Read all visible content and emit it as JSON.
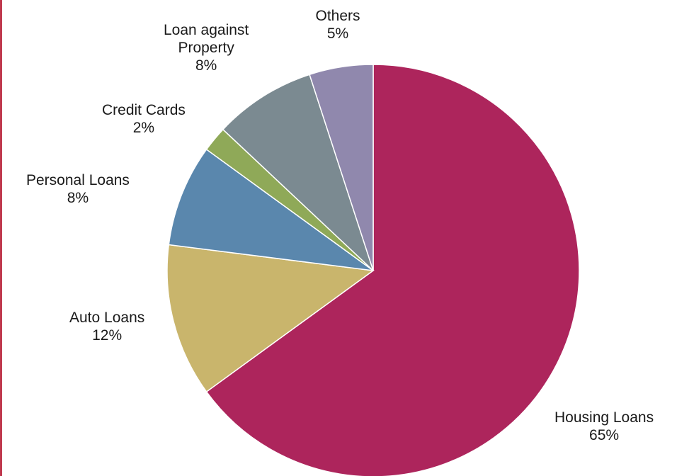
{
  "chart_data": {
    "type": "pie",
    "start": "top",
    "direction": "clockwise",
    "slices": [
      {
        "name": "Housing Loans",
        "label_lines": [
          "Housing Loans"
        ],
        "value": 65,
        "value_label": "65%",
        "color": "#ad255c"
      },
      {
        "name": "Auto Loans",
        "label_lines": [
          "Auto Loans"
        ],
        "value": 12,
        "value_label": "12%",
        "color": "#c9b56c"
      },
      {
        "name": "Personal Loans",
        "label_lines": [
          "Personal Loans"
        ],
        "value": 8,
        "value_label": "8%",
        "color": "#5a87ad"
      },
      {
        "name": "Credit Cards",
        "label_lines": [
          "Credit Cards"
        ],
        "value": 2,
        "value_label": "2%",
        "color": "#8fa958"
      },
      {
        "name": "Loan against Property",
        "label_lines": [
          "Loan against",
          "Property"
        ],
        "value": 8,
        "value_label": "8%",
        "color": "#7b8a91"
      },
      {
        "name": "Others",
        "label_lines": [
          "Others"
        ],
        "value": 5,
        "value_label": "5%",
        "color": "#9088ad"
      }
    ]
  },
  "frame": {
    "accent_color": "#c0394f"
  }
}
